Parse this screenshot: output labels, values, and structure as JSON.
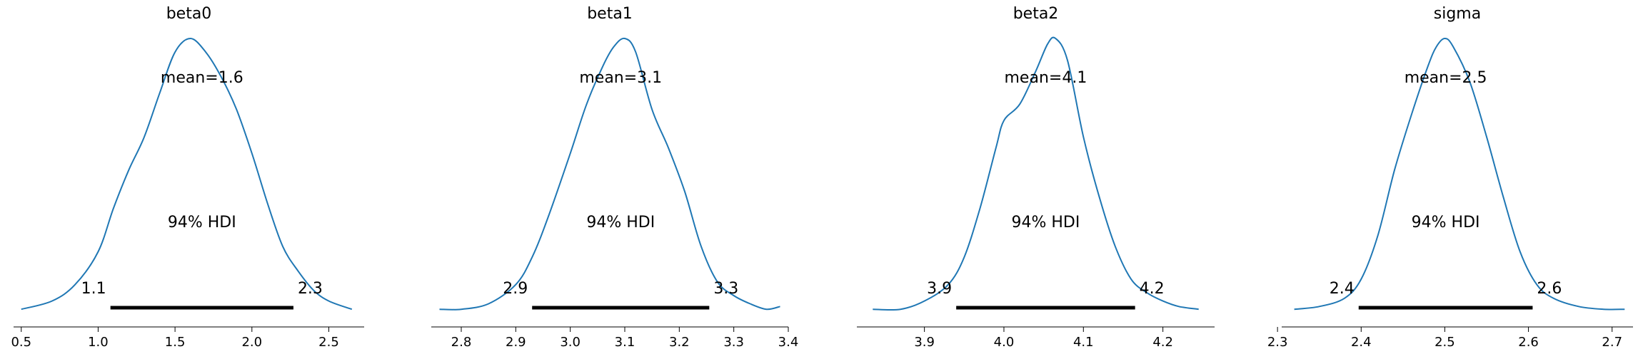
{
  "chart_data": [
    {
      "type": "line",
      "title": "beta0",
      "xlim": [
        0.45,
        2.73
      ],
      "ticks": [
        0.5,
        1.0,
        1.5,
        2.0,
        2.5
      ],
      "tick_labels": [
        "0.5",
        "1.0",
        "1.5",
        "2.0",
        "2.5"
      ],
      "mean_label": "mean=1.6",
      "hdi_label": "94% HDI",
      "hdi": [
        1.08,
        2.27
      ],
      "hdi_low_label": "1.1",
      "hdi_high_label": "2.3",
      "density": {
        "x": [
          0.5,
          0.7,
          0.85,
          1.0,
          1.1,
          1.2,
          1.3,
          1.4,
          1.5,
          1.6,
          1.7,
          1.8,
          1.9,
          2.0,
          2.1,
          2.2,
          2.3,
          2.4,
          2.5,
          2.65
        ],
        "y": [
          0.01,
          0.04,
          0.1,
          0.22,
          0.38,
          0.52,
          0.64,
          0.8,
          0.95,
          1.0,
          0.95,
          0.86,
          0.74,
          0.58,
          0.4,
          0.24,
          0.15,
          0.08,
          0.04,
          0.01
        ]
      }
    },
    {
      "type": "line",
      "title": "beta1",
      "xlim": [
        2.745,
        3.4
      ],
      "ticks": [
        2.8,
        2.9,
        3.0,
        3.1,
        3.2,
        3.3,
        3.4
      ],
      "tick_labels": [
        "2.8",
        "2.9",
        "3.0",
        "3.1",
        "3.2",
        "3.3",
        "3.4"
      ],
      "mean_label": "mean=3.1",
      "hdi_label": "94% HDI",
      "hdi": [
        2.93,
        3.255
      ],
      "hdi_low_label": "2.9",
      "hdi_high_label": "3.3",
      "density": {
        "x": [
          2.76,
          2.8,
          2.85,
          2.9,
          2.93,
          2.96,
          3.0,
          3.03,
          3.06,
          3.08,
          3.1,
          3.12,
          3.15,
          3.18,
          3.21,
          3.24,
          3.27,
          3.3,
          3.33,
          3.36,
          3.385
        ],
        "y": [
          0.01,
          0.01,
          0.03,
          0.1,
          0.2,
          0.35,
          0.58,
          0.76,
          0.9,
          0.97,
          1.0,
          0.95,
          0.74,
          0.6,
          0.44,
          0.24,
          0.11,
          0.06,
          0.03,
          0.01,
          0.02
        ]
      }
    },
    {
      "type": "line",
      "title": "beta2",
      "xlim": [
        3.815,
        4.265
      ],
      "ticks": [
        3.9,
        4.0,
        4.1,
        4.2
      ],
      "tick_labels": [
        "3.9",
        "4.0",
        "4.1",
        "4.2"
      ],
      "mean_label": "mean=4.1",
      "hdi_label": "94% HDI",
      "hdi": [
        3.94,
        4.165
      ],
      "hdi_low_label": "3.9",
      "hdi_high_label": "4.2",
      "density": {
        "x": [
          3.835,
          3.87,
          3.9,
          3.93,
          3.95,
          3.97,
          3.99,
          4.0,
          4.02,
          4.04,
          4.055,
          4.065,
          4.08,
          4.1,
          4.12,
          4.14,
          4.16,
          4.18,
          4.2,
          4.22,
          4.245
        ],
        "y": [
          0.01,
          0.01,
          0.04,
          0.1,
          0.2,
          0.38,
          0.6,
          0.7,
          0.76,
          0.88,
          0.98,
          1.0,
          0.92,
          0.64,
          0.42,
          0.24,
          0.12,
          0.07,
          0.04,
          0.02,
          0.01
        ]
      }
    },
    {
      "type": "line",
      "title": "sigma",
      "xlim": [
        2.305,
        2.725
      ],
      "ticks": [
        2.3,
        2.4,
        2.5,
        2.6,
        2.7
      ],
      "tick_labels": [
        "2.3",
        "2.4",
        "2.5",
        "2.6",
        "2.7"
      ],
      "mean_label": "mean=2.5",
      "hdi_label": "94% HDI",
      "hdi": [
        2.397,
        2.605
      ],
      "hdi_low_label": "2.4",
      "hdi_high_label": "2.6",
      "density": {
        "x": [
          2.32,
          2.35,
          2.38,
          2.4,
          2.42,
          2.44,
          2.46,
          2.48,
          2.49,
          2.5,
          2.51,
          2.53,
          2.55,
          2.57,
          2.59,
          2.61,
          2.63,
          2.66,
          2.69,
          2.715
        ],
        "y": [
          0.01,
          0.02,
          0.05,
          0.12,
          0.28,
          0.52,
          0.72,
          0.9,
          0.97,
          1.0,
          0.97,
          0.84,
          0.64,
          0.42,
          0.22,
          0.1,
          0.05,
          0.02,
          0.01,
          0.01
        ]
      }
    }
  ]
}
